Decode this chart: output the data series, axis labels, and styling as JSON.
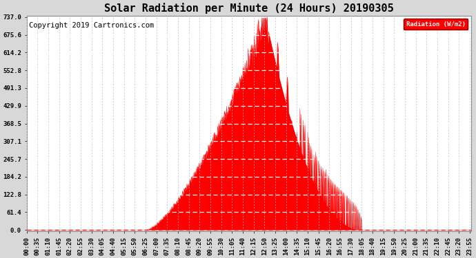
{
  "title": "Solar Radiation per Minute (24 Hours) 20190305",
  "copyright_text": "Copyright 2019 Cartronics.com",
  "legend_label": "Radiation (W/m2)",
  "y_ticks": [
    0.0,
    61.4,
    122.8,
    184.2,
    245.7,
    307.1,
    368.5,
    429.9,
    491.3,
    552.8,
    614.2,
    675.6,
    737.0
  ],
  "y_max": 737.0,
  "fill_color": "#FF0000",
  "line_color": "#FF0000",
  "hgrid_color": "#FFFFFF",
  "vgrid_color": "#BBBBBB",
  "bg_color": "#D8D8D8",
  "plot_bg_color": "#FFFFFF",
  "dashed_line_color": "#FF0000",
  "title_fontsize": 11,
  "tick_fontsize": 6.5,
  "copyright_fontsize": 7.5,
  "total_minutes": 1440,
  "sunrise_minute": 385,
  "sunset_minute": 1090,
  "peak_minute": 773,
  "peak_value": 737.0,
  "tick_interval": 35
}
